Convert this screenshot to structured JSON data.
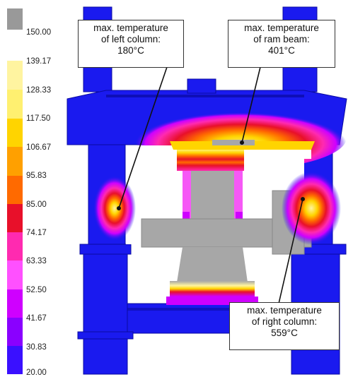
{
  "legend": {
    "values": [
      "150.00",
      "139.17",
      "128.33",
      "117.50",
      "106.67",
      "95.83",
      "85.00",
      "74.17",
      "63.33",
      "52.50",
      "41.67",
      "30.83",
      "20.00"
    ],
    "colors": [
      "#999999",
      "#fff4a0",
      "#fff070",
      "#ffd400",
      "#ffa000",
      "#ff6a00",
      "#e8102a",
      "#ff2ab0",
      "#ff50ff",
      "#cf00ff",
      "#8a00ff",
      "#3a10ff",
      "#1020e0"
    ]
  },
  "callouts": {
    "left_column": {
      "line1": "max. temperature",
      "line2": "of left column:",
      "line3": "180°C"
    },
    "ram_beam": {
      "line1": "max. temperature",
      "line2": "of ram beam:",
      "line3": "401°C"
    },
    "right_column": {
      "line1": "max. temperature",
      "line2": "of right column:",
      "line3": "559°C"
    }
  },
  "colors": {
    "steel": "#1a1aef",
    "steel_dark": "#0b0ba0",
    "hot_gray": "#a7a7a7"
  }
}
